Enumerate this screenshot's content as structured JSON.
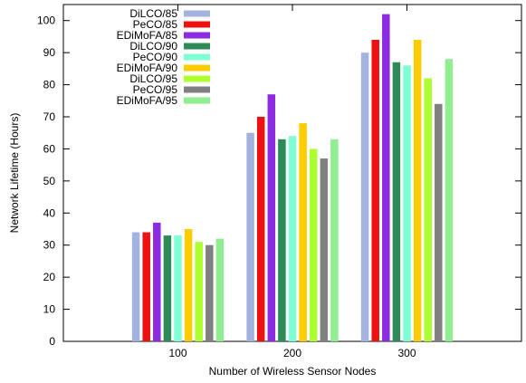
{
  "chart_data": {
    "type": "bar",
    "xlabel": "Number of Wireless Sensor Nodes",
    "ylabel": "Network Lifetime (Hours)",
    "categories": [
      "100",
      "200",
      "300"
    ],
    "ylim": [
      0,
      105
    ],
    "yticks": [
      0,
      10,
      20,
      30,
      40,
      50,
      60,
      70,
      80,
      90,
      100
    ],
    "grid": false,
    "legend_position": "top-left",
    "series": [
      {
        "name": "DiLCO/85",
        "color": "#a3b3e0",
        "values": [
          34,
          65,
          90
        ]
      },
      {
        "name": "PeCO/85",
        "color": "#ee1111",
        "values": [
          34,
          70,
          94
        ]
      },
      {
        "name": "EDiMoFA/85",
        "color": "#8c2be2",
        "values": [
          37,
          77,
          102
        ]
      },
      {
        "name": "DiLCO/90",
        "color": "#2e8b57",
        "values": [
          33,
          63,
          87
        ]
      },
      {
        "name": "PeCO/90",
        "color": "#7fffd4",
        "values": [
          33,
          64,
          86
        ]
      },
      {
        "name": "EDiMoFA/90",
        "color": "#ffcc00",
        "values": [
          35,
          68,
          94
        ]
      },
      {
        "name": "DiLCO/95",
        "color": "#adff2f",
        "values": [
          31,
          60,
          82
        ]
      },
      {
        "name": "PeCO/95",
        "color": "#808080",
        "values": [
          30,
          57,
          74
        ]
      },
      {
        "name": "EDiMoFA/95",
        "color": "#90ee90",
        "values": [
          32,
          63,
          88
        ]
      }
    ]
  }
}
